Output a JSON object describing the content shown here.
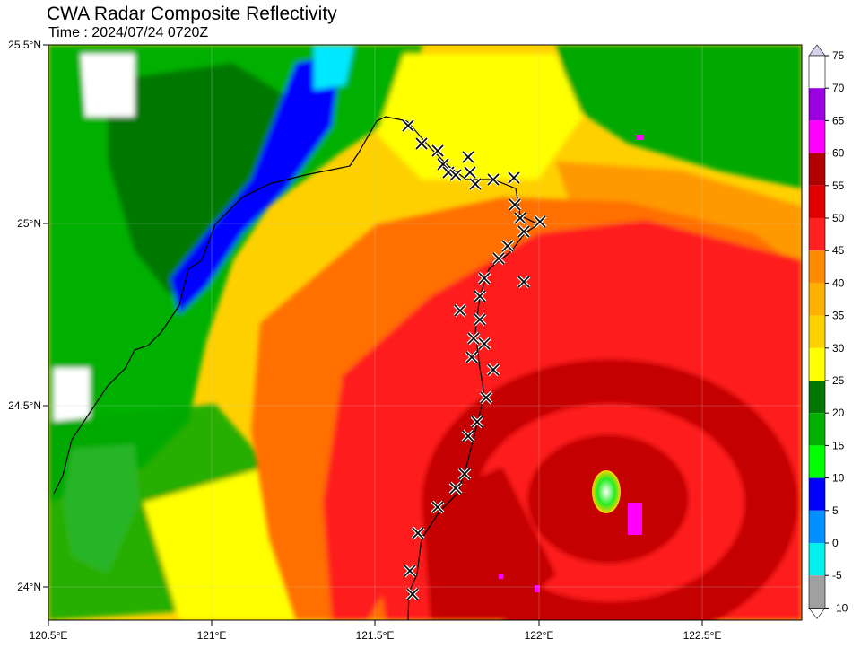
{
  "title": "CWA Radar Composite Reflectivity",
  "subtitle": "Time : 2024/07/24 0720Z",
  "axes": {
    "x_ticks": [
      "120.5°E",
      "121°E",
      "121.5°E",
      "122°E",
      "122.5°E"
    ],
    "y_ticks": [
      "25.5°N",
      "25°N",
      "24.5°N",
      "24°N"
    ]
  },
  "colorbar": {
    "labels": [
      "75",
      "70",
      "65",
      "60",
      "55",
      "50",
      "45",
      "40",
      "35",
      "30",
      "25",
      "20",
      "15",
      "10",
      "5",
      "0",
      "-5",
      "-10"
    ],
    "colors": [
      "#d8d0e8",
      "#ffffff",
      "#9b00e0",
      "#ff00ff",
      "#b00000",
      "#e00000",
      "#ff2020",
      "#ff8c00",
      "#ffb000",
      "#ffd000",
      "#ffff00",
      "#007800",
      "#00b000",
      "#00ff00",
      "#0000ff",
      "#0090ff",
      "#00f0f0",
      "#a0a0a0"
    ]
  },
  "palette": {
    "cyan": "#00e8ff",
    "blue": "#0000ff",
    "lightgreen": "#22ee22",
    "green": "#00a800",
    "darkgreen": "#006e00",
    "yellow": "#ffff00",
    "gold": "#ffd000",
    "orange": "#ff9900",
    "darkorange": "#ff6f00",
    "red": "#ff1a1a",
    "darkred": "#c40000",
    "magenta": "#ff00ff",
    "white": "#ffffff",
    "grey": "#b4b4b4",
    "marker": "#000000"
  },
  "markers": {
    "symbol": "x-icon",
    "count": 46
  }
}
